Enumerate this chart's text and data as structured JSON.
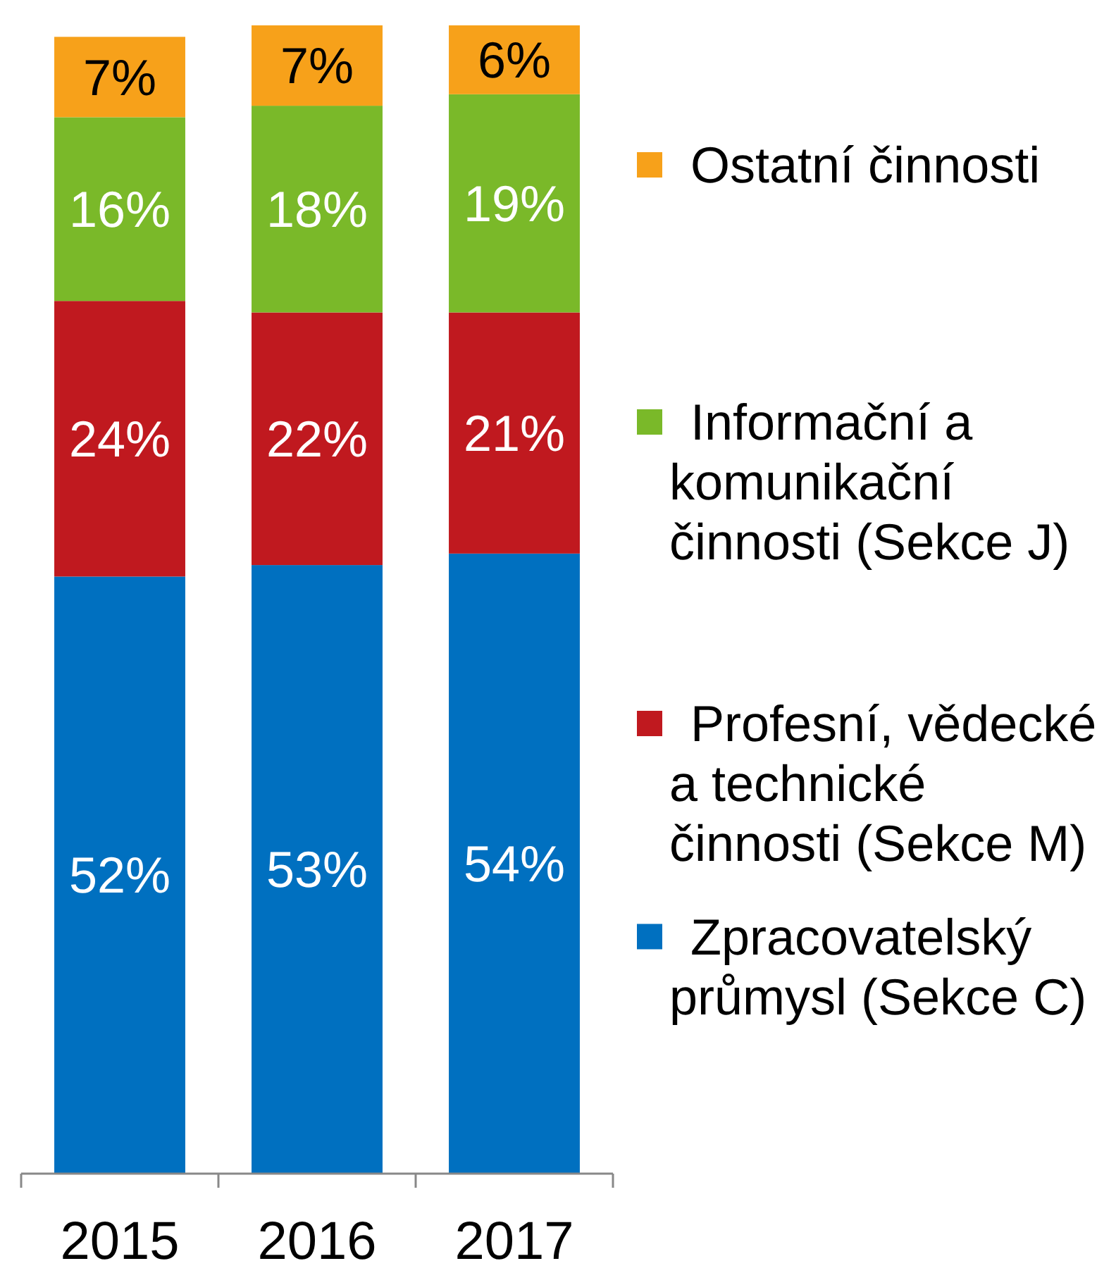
{
  "chart_data": {
    "type": "bar",
    "stacked": true,
    "categories": [
      "2015",
      "2016",
      "2017"
    ],
    "series": [
      {
        "name": "Zpracovatelský průmysl (Sekce C)",
        "color": "#0070c0",
        "values": [
          52,
          53,
          54
        ],
        "value_labels": [
          "52%",
          "53%",
          "54%"
        ]
      },
      {
        "name": "Profesní, vědecké a technické činnosti (Sekce M)",
        "color": "#c0191f",
        "values": [
          24,
          22,
          21
        ],
        "value_labels": [
          "24%",
          "22%",
          "21%"
        ]
      },
      {
        "name": "Informační a komunikační činnosti (Sekce J)",
        "color": "#7ab929",
        "values": [
          16,
          18,
          19
        ],
        "value_labels": [
          "16%",
          "18%",
          "19%"
        ]
      },
      {
        "name": "Ostatní činnosti",
        "color": "#f7a11a",
        "values": [
          7,
          7,
          6
        ],
        "value_labels": [
          "7%",
          "7%",
          "6%"
        ]
      }
    ],
    "legend": "right"
  }
}
